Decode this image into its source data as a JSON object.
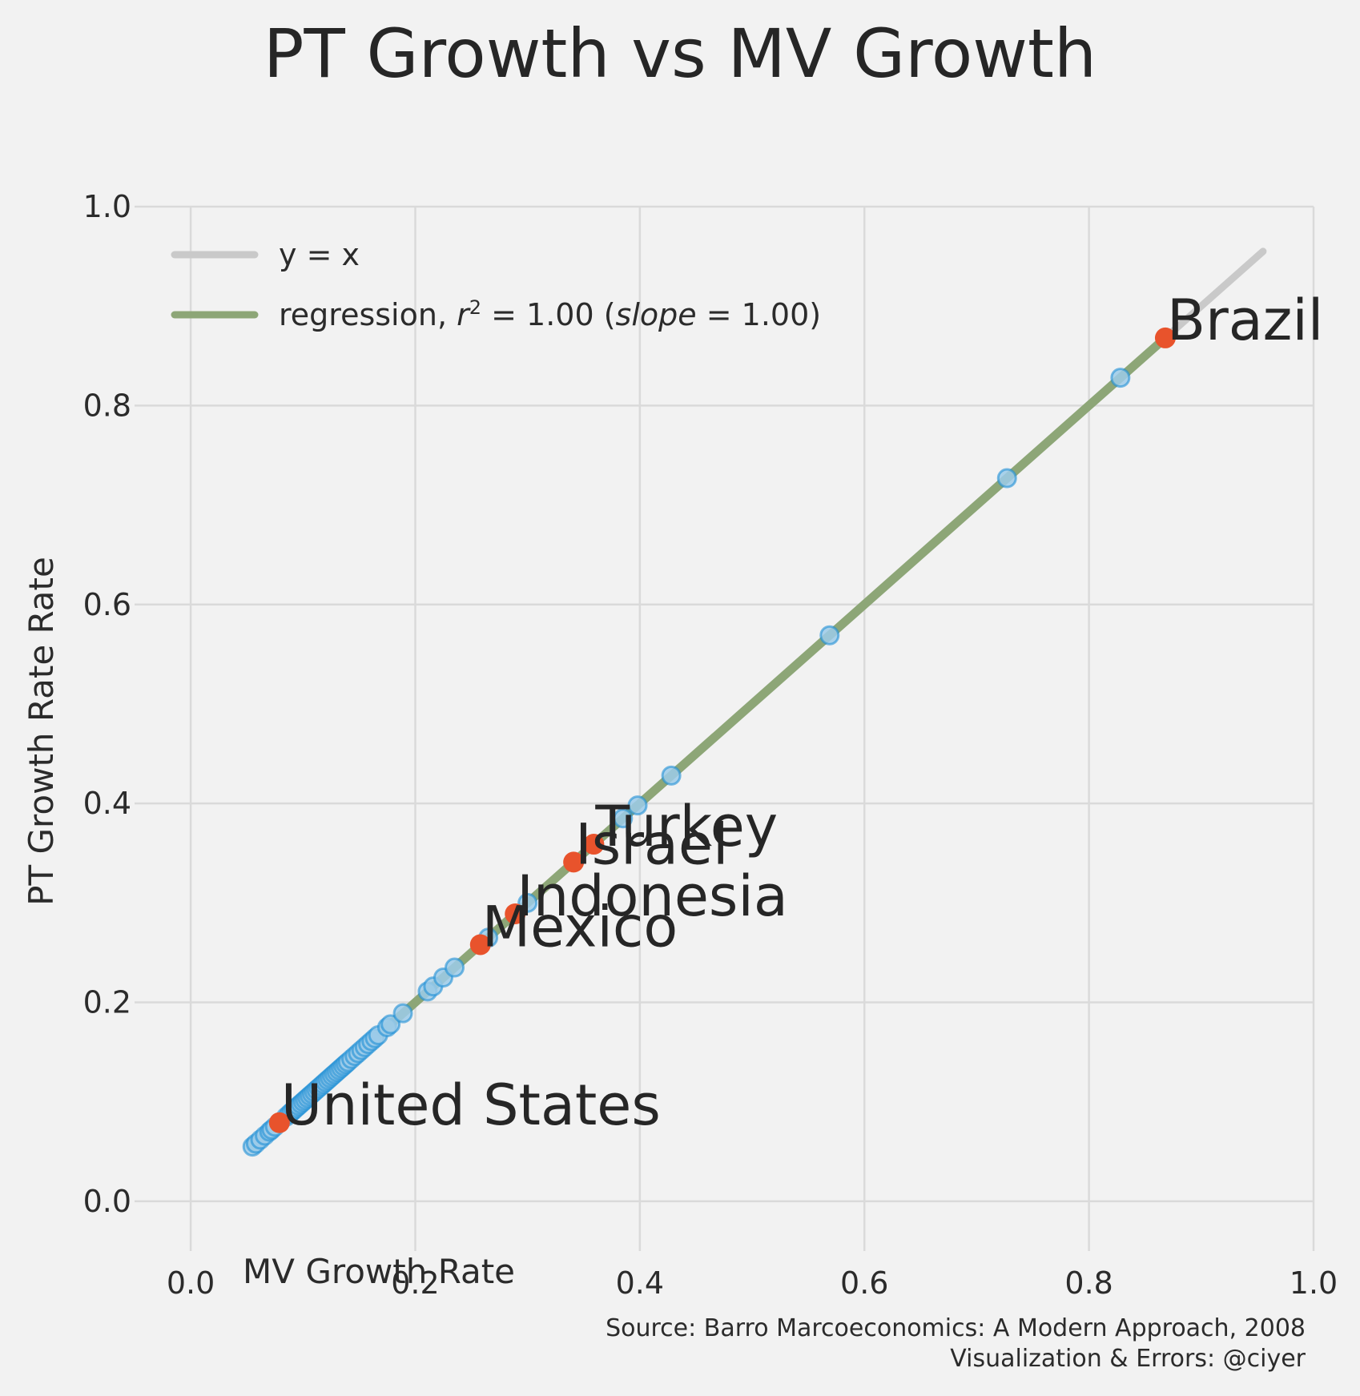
{
  "chart_data": {
    "type": "scatter",
    "title": "PT Growth vs MV Growth",
    "xlabel": "MV Growth Rate",
    "ylabel": "PT Growth Rate Rate",
    "xlim": [
      -0.05,
      1.0
    ],
    "ylim": [
      -0.05,
      1.0
    ],
    "x_ticks": [
      "0.0",
      "0.2",
      "0.4",
      "0.6",
      "0.8",
      "1.0"
    ],
    "y_ticks": [
      "0.0",
      "0.2",
      "0.4",
      "0.6",
      "0.8",
      "1.0"
    ],
    "grid": true,
    "legend_position": "top-left",
    "legend": {
      "identity_label": "y = x",
      "regression_label_prefix": "regression, ",
      "r2_var": "r",
      "r2_exp": "2",
      "r2_value": " = 1.00 (",
      "slope_var": "slope",
      "slope_value": " = 1.00)"
    },
    "identity_line": [
      [
        0.055,
        0.055
      ],
      [
        0.955,
        0.955
      ]
    ],
    "regression_line": [
      [
        0.055,
        0.055
      ],
      [
        0.868,
        0.868
      ]
    ],
    "series": [
      {
        "name": "countries",
        "points": [
          [
            0.055,
            0.055
          ],
          [
            0.058,
            0.058
          ],
          [
            0.062,
            0.062
          ],
          [
            0.066,
            0.066
          ],
          [
            0.07,
            0.07
          ],
          [
            0.072,
            0.072
          ],
          [
            0.075,
            0.075
          ],
          [
            0.085,
            0.085
          ],
          [
            0.088,
            0.088
          ],
          [
            0.09,
            0.09
          ],
          [
            0.092,
            0.092
          ],
          [
            0.094,
            0.094
          ],
          [
            0.096,
            0.096
          ],
          [
            0.098,
            0.098
          ],
          [
            0.1,
            0.1
          ],
          [
            0.102,
            0.102
          ],
          [
            0.104,
            0.104
          ],
          [
            0.106,
            0.106
          ],
          [
            0.108,
            0.108
          ],
          [
            0.11,
            0.11
          ],
          [
            0.112,
            0.112
          ],
          [
            0.114,
            0.114
          ],
          [
            0.116,
            0.116
          ],
          [
            0.118,
            0.118
          ],
          [
            0.12,
            0.12
          ],
          [
            0.122,
            0.122
          ],
          [
            0.124,
            0.124
          ],
          [
            0.126,
            0.126
          ],
          [
            0.128,
            0.128
          ],
          [
            0.13,
            0.13
          ],
          [
            0.132,
            0.132
          ],
          [
            0.134,
            0.134
          ],
          [
            0.136,
            0.136
          ],
          [
            0.138,
            0.138
          ],
          [
            0.14,
            0.14
          ],
          [
            0.143,
            0.143
          ],
          [
            0.146,
            0.146
          ],
          [
            0.149,
            0.149
          ],
          [
            0.152,
            0.152
          ],
          [
            0.155,
            0.155
          ],
          [
            0.158,
            0.158
          ],
          [
            0.161,
            0.161
          ],
          [
            0.164,
            0.164
          ],
          [
            0.167,
            0.167
          ],
          [
            0.175,
            0.175
          ],
          [
            0.178,
            0.178
          ],
          [
            0.189,
            0.189
          ],
          [
            0.211,
            0.211
          ],
          [
            0.216,
            0.216
          ],
          [
            0.225,
            0.225
          ],
          [
            0.235,
            0.235
          ],
          [
            0.265,
            0.265
          ],
          [
            0.3,
            0.3
          ],
          [
            0.385,
            0.385
          ],
          [
            0.398,
            0.398
          ],
          [
            0.428,
            0.428
          ],
          [
            0.569,
            0.569
          ],
          [
            0.727,
            0.727
          ],
          [
            0.828,
            0.828
          ]
        ]
      }
    ],
    "highlighted": [
      {
        "name": "United States",
        "x": 0.079,
        "y": 0.079
      },
      {
        "name": "Mexico",
        "x": 0.258,
        "y": 0.258
      },
      {
        "name": "Indonesia",
        "x": 0.289,
        "y": 0.289
      },
      {
        "name": "Israel",
        "x": 0.341,
        "y": 0.341
      },
      {
        "name": "Turkey",
        "x": 0.359,
        "y": 0.359
      },
      {
        "name": "Brazil",
        "x": 0.868,
        "y": 0.868
      }
    ],
    "colors": {
      "background": "#f2f2f2",
      "grid": "#dadada",
      "points_fill": "#9ccbe9",
      "points_edge": "#1f8fd6",
      "highlight": "#e8532c",
      "identity": "#c9c9c9",
      "regression": "#8da677",
      "text": "#262626"
    },
    "source_lines": [
      "Source: Barro Marcoeconomics: A Modern Approach, 2008",
      "Visualization & Errors: @ciyer"
    ]
  }
}
